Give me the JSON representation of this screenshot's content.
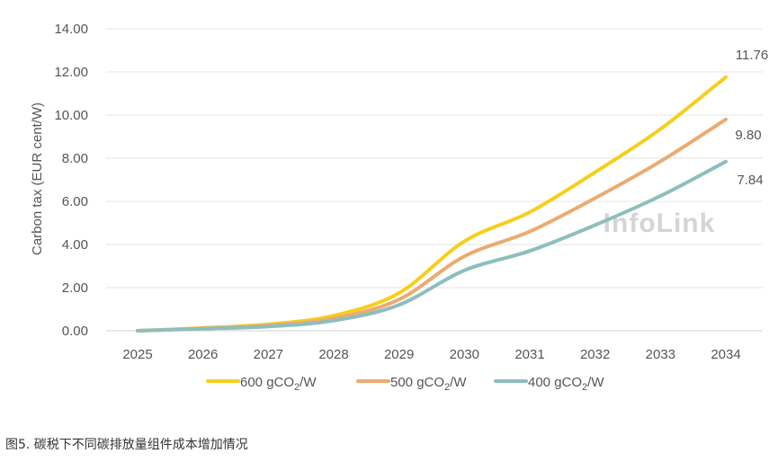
{
  "chart_data": {
    "type": "line",
    "title": "",
    "ylabel": "Carbon tax (EUR cent/W)",
    "xlabel": "",
    "categories": [
      "2025",
      "2026",
      "2027",
      "2028",
      "2029",
      "2030",
      "2031",
      "2032",
      "2033",
      "2034"
    ],
    "yticks": [
      "0.00",
      "2.00",
      "4.00",
      "6.00",
      "8.00",
      "10.00",
      "12.00",
      "14.00"
    ],
    "ylim": [
      0,
      14
    ],
    "grid": "horizontal",
    "legend_position": "bottom",
    "series": [
      {
        "name_main": "600 gCO",
        "name_sub": "2",
        "name_tail": "/W",
        "color": "#F5CF1D",
        "values": [
          0.0,
          0.13,
          0.3,
          0.7,
          1.75,
          4.15,
          5.5,
          7.35,
          9.35,
          11.76
        ],
        "end_label": "11.76"
      },
      {
        "name_main": "500 gCO",
        "name_sub": "2",
        "name_tail": "/W",
        "color": "#EBAB70",
        "values": [
          0.0,
          0.11,
          0.25,
          0.58,
          1.45,
          3.45,
          4.6,
          6.15,
          7.85,
          9.8
        ],
        "end_label": "9.80"
      },
      {
        "name_main": "400 gCO",
        "name_sub": "2",
        "name_tail": "/W",
        "color": "#8DBEBE",
        "values": [
          0.0,
          0.09,
          0.2,
          0.47,
          1.2,
          2.8,
          3.7,
          4.9,
          6.25,
          7.84
        ],
        "end_label": "7.84"
      }
    ],
    "watermark": "InfoLink"
  },
  "caption": "图5. 碳税下不同碳排放量组件成本增加情况"
}
